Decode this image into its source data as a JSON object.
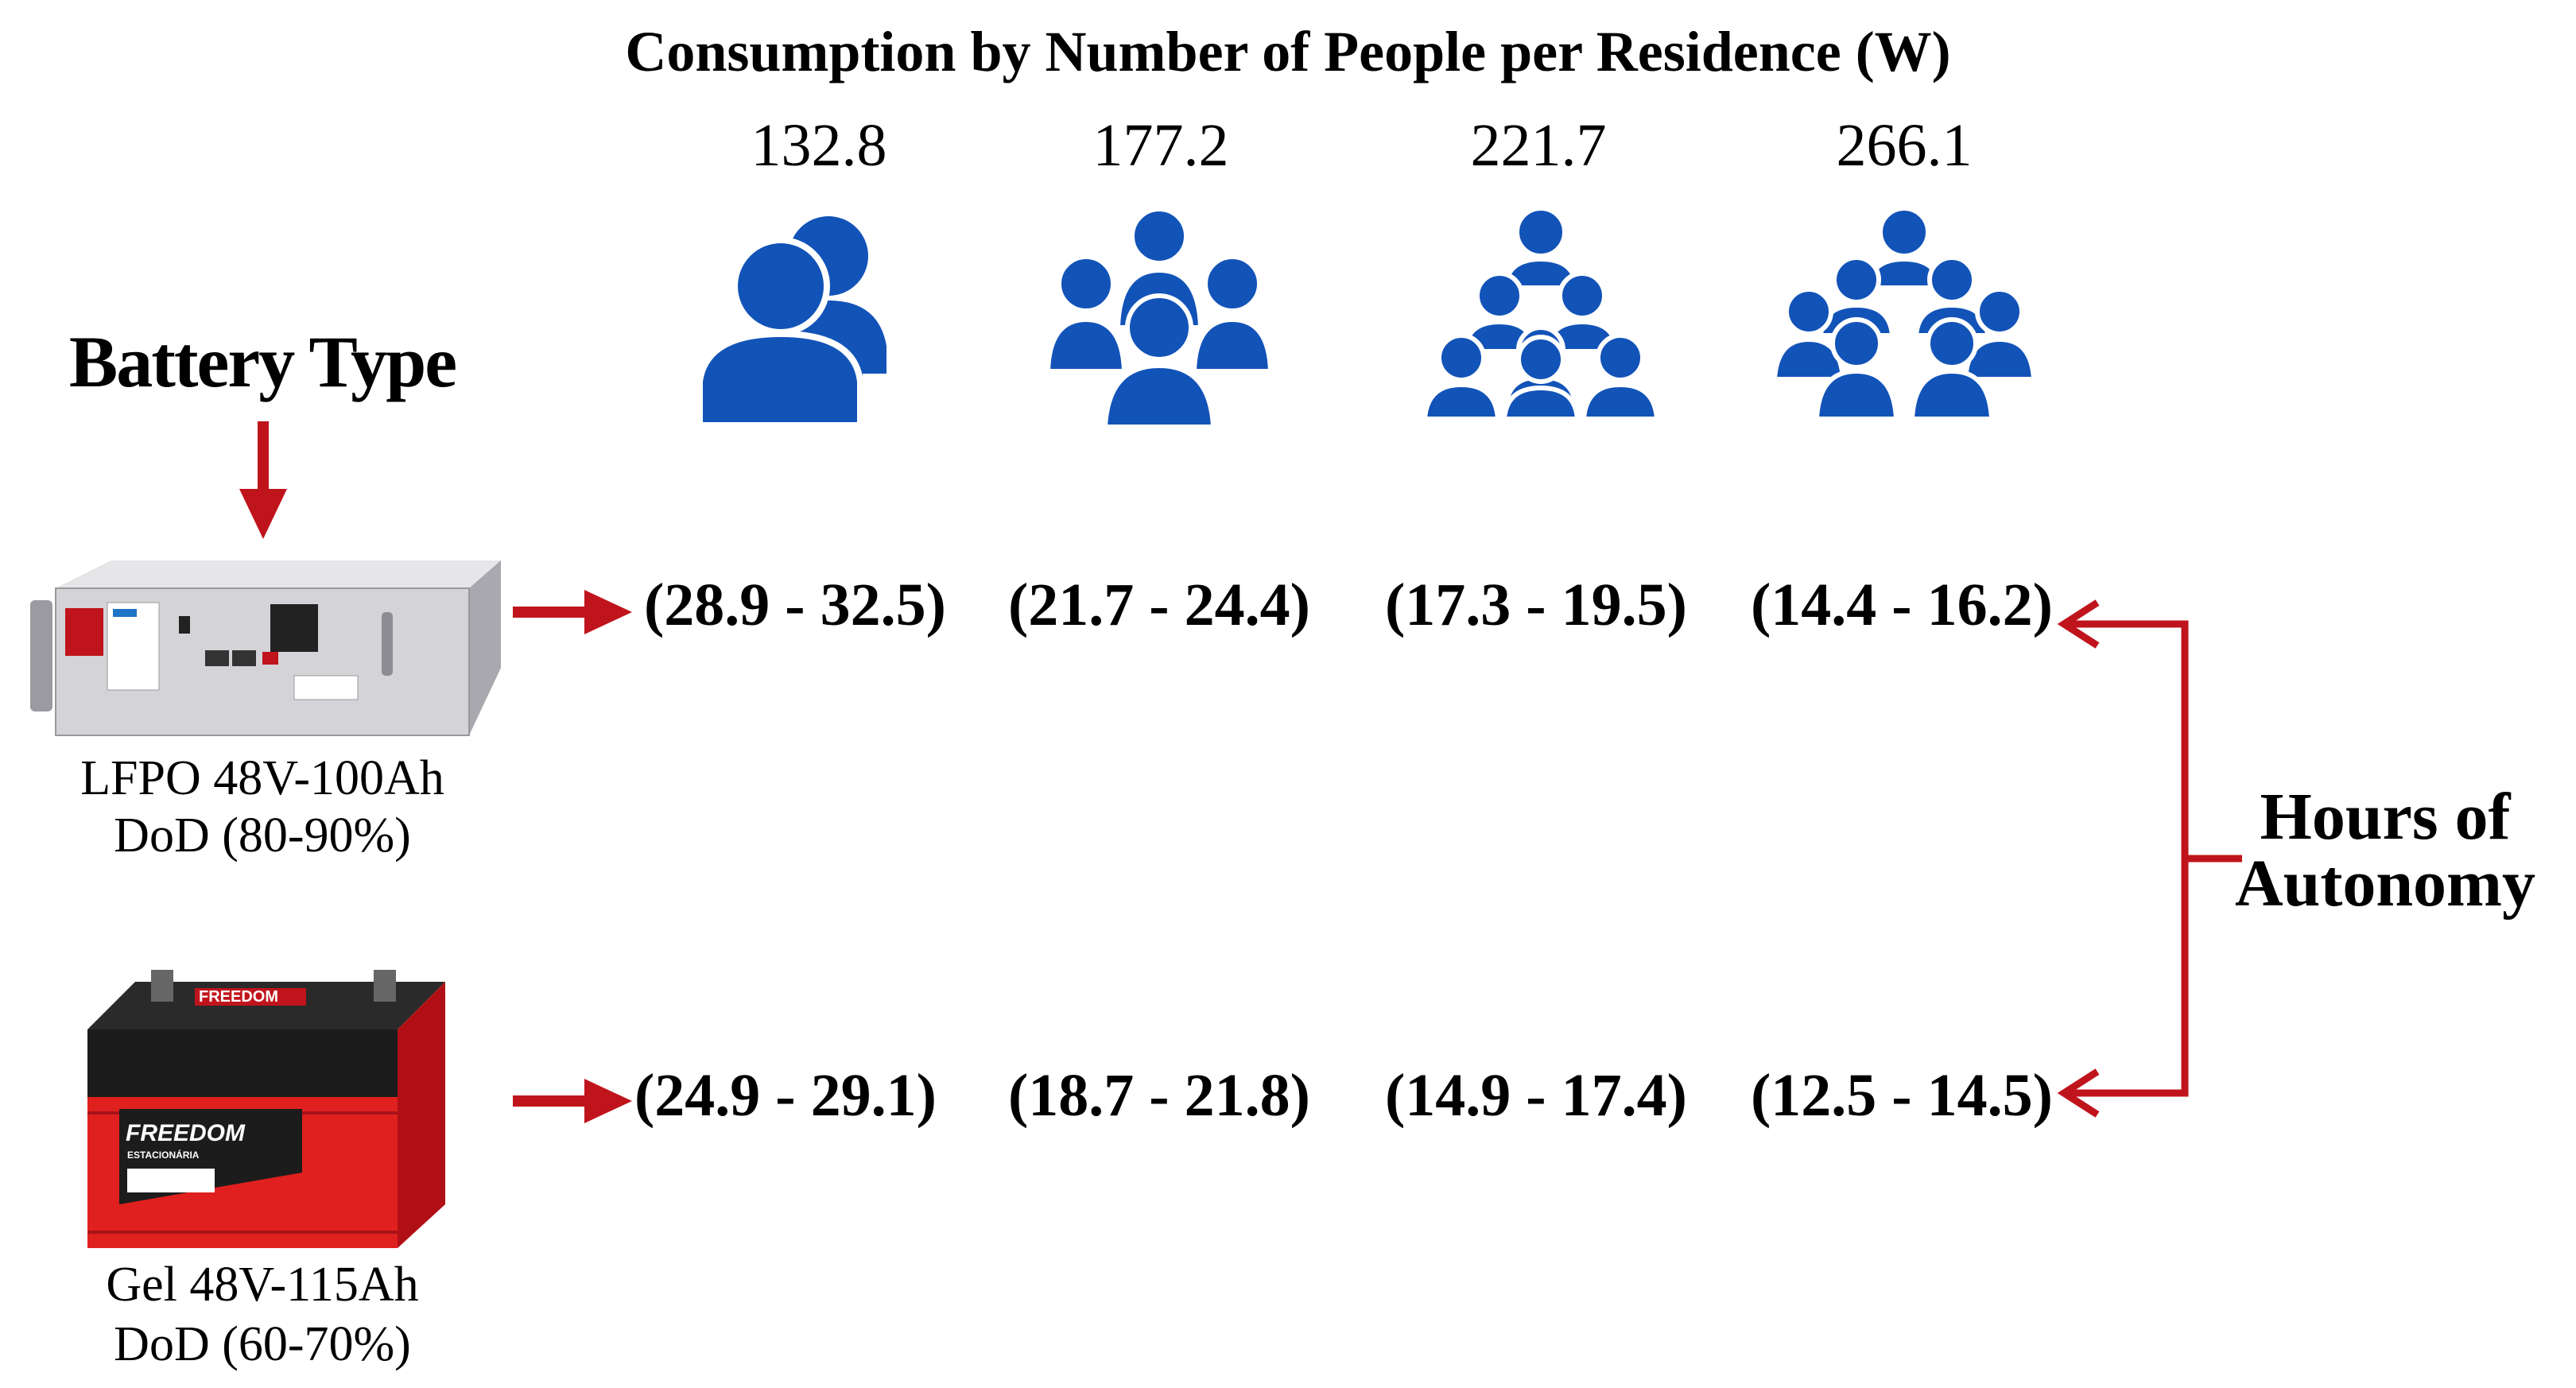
{
  "title": "Consumption by Number of People per Residence (W)",
  "consumption": [
    {
      "value": "132.8",
      "icon": "two-people-icon"
    },
    {
      "value": "177.2",
      "icon": "three-people-icon"
    },
    {
      "value": "221.7",
      "icon": "six-people-icon"
    },
    {
      "value": "266.1",
      "icon": "seven-people-icon"
    }
  ],
  "battery_type_label": "Battery Type",
  "batteries": [
    {
      "name": "LFPO 48V-100Ah",
      "dod": "DoD (80-90%)",
      "icon": "lithium-rack-battery-icon",
      "hours": [
        "(28.9 - 32.5)",
        "(21.7 - 24.4)",
        "(17.3 - 19.5)",
        "(14.4 - 16.2)"
      ]
    },
    {
      "name": "Gel 48V-115Ah",
      "dod": "DoD (60-70%)",
      "icon": "gel-battery-icon",
      "brand_text": "FREEDOM",
      "subtext": "ESTACIONÁRIA",
      "hours": [
        "(24.9 - 29.1)",
        "(18.7 - 21.8)",
        "(14.9 - 17.4)",
        "(12.5 - 14.5)"
      ]
    }
  ],
  "hours_label_line1": "Hours of",
  "hours_label_line2": "Autonomy",
  "colors": {
    "icon_blue": "#1253b8",
    "arrow_red": "#c0141c",
    "battery_red": "#e0201e"
  }
}
